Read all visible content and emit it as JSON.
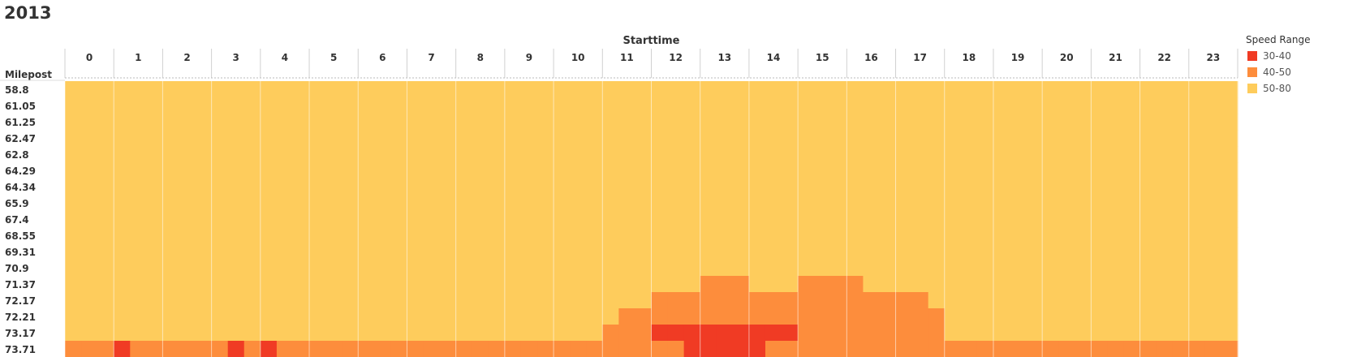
{
  "title": "2013",
  "chart_data": {
    "type": "heatmap",
    "title": "2013",
    "xlabel": "Starttime",
    "ylabel": "Milepost",
    "x_categories": [
      "0",
      "1",
      "2",
      "3",
      "4",
      "5",
      "6",
      "7",
      "8",
      "9",
      "10",
      "11",
      "12",
      "13",
      "14",
      "15",
      "16",
      "17",
      "18",
      "19",
      "20",
      "21",
      "22",
      "23"
    ],
    "y_categories": [
      "58.8",
      "61.05",
      "61.25",
      "62.47",
      "62.8",
      "64.29",
      "64.34",
      "65.9",
      "67.4",
      "68.55",
      "69.31",
      "70.9",
      "71.37",
      "72.17",
      "72.21",
      "73.17",
      "73.71"
    ],
    "resolution_minutes": 20,
    "default_range": "50-80",
    "legend": {
      "title": "Speed Range",
      "entries": [
        {
          "label": "30-40",
          "color": "#f03b24"
        },
        {
          "label": "40-50",
          "color": "#fd8d3c"
        },
        {
          "label": "50-80",
          "color": "#fecc5c"
        }
      ]
    },
    "segments": [
      {
        "milepost": "71.37",
        "range": "40-50",
        "start": "13:00",
        "end": "14:00"
      },
      {
        "milepost": "71.37",
        "range": "40-50",
        "start": "15:00",
        "end": "16:20"
      },
      {
        "milepost": "72.17",
        "range": "40-50",
        "start": "12:00",
        "end": "17:40"
      },
      {
        "milepost": "72.21",
        "range": "40-50",
        "start": "11:20",
        "end": "18:00"
      },
      {
        "milepost": "73.17",
        "range": "40-50",
        "start": "11:00",
        "end": "18:00"
      },
      {
        "milepost": "73.17",
        "range": "30-40",
        "start": "12:00",
        "end": "15:00"
      },
      {
        "milepost": "73.71",
        "range": "40-50",
        "start": "0:00",
        "end": "24:00"
      },
      {
        "milepost": "73.71",
        "range": "30-40",
        "start": "1:00",
        "end": "1:20"
      },
      {
        "milepost": "73.71",
        "range": "30-40",
        "start": "3:20",
        "end": "3:40"
      },
      {
        "milepost": "73.71",
        "range": "30-40",
        "start": "4:00",
        "end": "4:20"
      },
      {
        "milepost": "73.71",
        "range": "30-40",
        "start": "12:40",
        "end": "14:20"
      }
    ]
  }
}
